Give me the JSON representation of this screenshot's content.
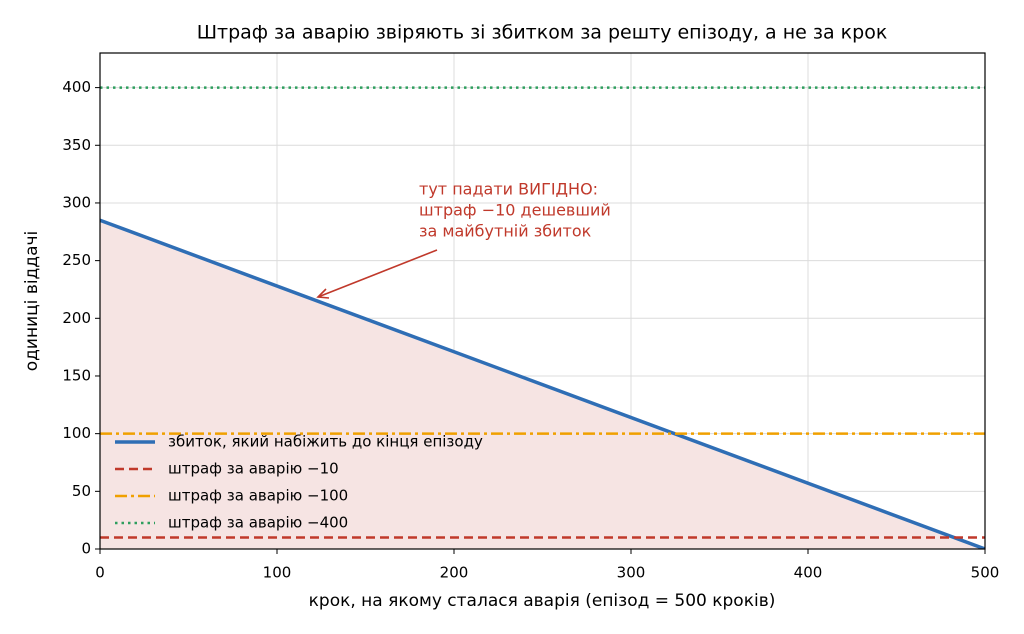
{
  "chart_data": {
    "type": "line",
    "title": "Штраф за аварію звіряють зі збитком за решту епізоду, а не за крок",
    "xlabel": "крок, на якому сталася аварія (епізод = 500 кроків)",
    "ylabel": "одиниці віддачі",
    "x": [
      0,
      500
    ],
    "series": [
      {
        "name": "збиток, який набіжить до кінця епізоду",
        "color": "#2f6eb5",
        "style": "solid",
        "width": 3.5,
        "fill": "#f6e4e3",
        "values": [
          285,
          0
        ]
      },
      {
        "name": "штраф за аварію −10",
        "color": "#c0392b",
        "style": "dashed",
        "width": 2.5,
        "values": [
          10,
          10
        ]
      },
      {
        "name": "штраф за аварію −100",
        "color": "#f0a000",
        "style": "dashdot",
        "width": 2.5,
        "values": [
          100,
          100
        ]
      },
      {
        "name": "штраф за аварію −400",
        "color": "#2e9e5e",
        "style": "dotted",
        "width": 2.5,
        "values": [
          400,
          400
        ]
      }
    ],
    "annotation": [
      "тут падати ВИГІДНО:",
      "штраф −10 дешевший",
      "за майбутній збиток"
    ],
    "annotation_color": "#c0392b",
    "xlim": [
      0,
      500
    ],
    "ylim": [
      0,
      430
    ],
    "xticks": [
      0,
      100,
      200,
      300,
      400,
      500
    ],
    "yticks": [
      0,
      50,
      100,
      150,
      200,
      250,
      300,
      350,
      400
    ],
    "grid": true,
    "legend": "lower left"
  }
}
